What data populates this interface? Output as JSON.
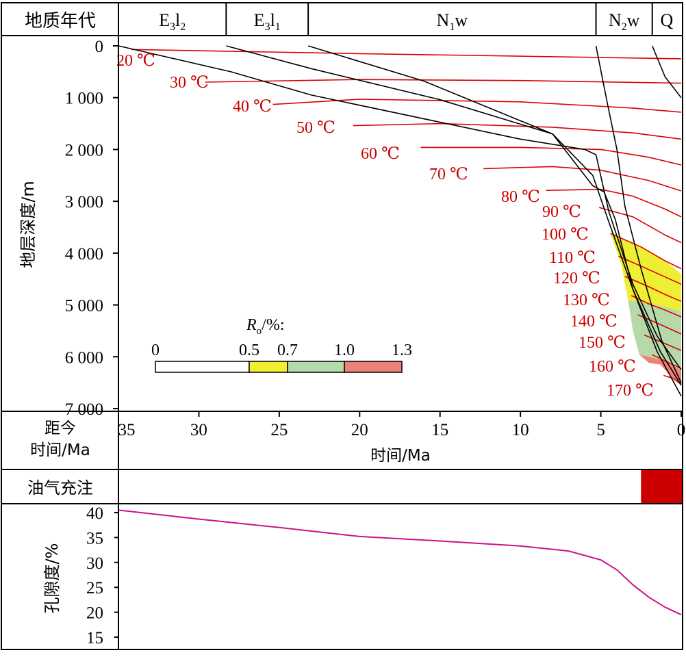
{
  "header": {
    "title": "地质年代",
    "formations": [
      {
        "base": "E",
        "sub": "3",
        "mid": "l",
        "sub2": "2",
        "start": 35,
        "end": 28.3
      },
      {
        "base": "E",
        "sub": "3",
        "mid": "l",
        "sub2": "1",
        "start": 28.3,
        "end": 23.2
      },
      {
        "base": "N",
        "sub": "1",
        "mid": "w",
        "sub2": "",
        "start": 23.2,
        "end": 5.3
      },
      {
        "base": "N",
        "sub": "2",
        "mid": "w",
        "sub2": "",
        "start": 5.3,
        "end": 1.8
      },
      {
        "base": "Q",
        "sub": "",
        "mid": "",
        "sub2": "",
        "start": 1.8,
        "end": 0
      }
    ]
  },
  "burial": {
    "ylabel": "地层深度/m",
    "y_ticks": [
      "0",
      "1 000",
      "2 000",
      "3 000",
      "4 000",
      "5 000",
      "6 000",
      "7 000"
    ],
    "y_tick_values": [
      0,
      1000,
      2000,
      3000,
      4000,
      5000,
      6000,
      7000
    ],
    "ylim": [
      0,
      7000
    ],
    "xlim": [
      35,
      0
    ]
  },
  "xaxis": {
    "left_label": "距今\n时间/Ma",
    "ticks": [
      "35",
      "30",
      "25",
      "20",
      "15",
      "10",
      "5",
      "0"
    ],
    "tick_values": [
      35,
      30,
      25,
      20,
      15,
      10,
      5,
      0
    ],
    "xlabel": "时间/Ma"
  },
  "legend": {
    "title_main": "R",
    "title_sub": "o",
    "title_rest": "/%:",
    "labels": [
      "0",
      "0.5",
      "0.7",
      "1.0",
      "1.3"
    ],
    "colors": [
      "#ffffff",
      "#eeee33",
      "#b5d9a8",
      "#ee8278"
    ]
  },
  "charge": {
    "label": "油气充注",
    "start_ma": 2.5,
    "end_ma": 0,
    "color": "#cc0000"
  },
  "porosity": {
    "ylabel": "孔隙度/%",
    "y_ticks": [
      "40",
      "35",
      "30",
      "25",
      "20",
      "15"
    ],
    "y_tick_values": [
      40,
      35,
      30,
      25,
      20,
      15
    ],
    "color": "#cc1188"
  },
  "chart_data": [
    {
      "type": "line",
      "name": "burial-history",
      "x_unit": "Ma",
      "y_unit": "m",
      "xlim": [
        35,
        0
      ],
      "ylim": [
        0,
        7000
      ],
      "burial_curves": [
        [
          [
            35,
            0
          ],
          [
            28,
            500
          ],
          [
            23,
            950
          ],
          [
            10,
            1800
          ],
          [
            6,
            2000
          ],
          [
            5.3,
            2100
          ],
          [
            4.5,
            3200
          ],
          [
            3,
            4600
          ],
          [
            1.5,
            5600
          ],
          [
            0,
            6250
          ]
        ],
        [
          [
            28.3,
            0
          ],
          [
            23,
            440
          ],
          [
            15,
            1040
          ],
          [
            8,
            1700
          ],
          [
            5.5,
            2500
          ],
          [
            4.5,
            3400
          ],
          [
            3,
            4700
          ],
          [
            1.3,
            5900
          ],
          [
            0,
            6550
          ]
        ],
        [
          [
            23.2,
            0
          ],
          [
            16,
            680
          ],
          [
            8,
            1700
          ],
          [
            5.5,
            2700
          ],
          [
            4.8,
            2820
          ],
          [
            4.1,
            3350
          ],
          [
            3,
            4700
          ],
          [
            1.5,
            5900
          ],
          [
            0,
            6760
          ]
        ],
        [
          [
            5.3,
            0
          ],
          [
            4.6,
            1100
          ],
          [
            4,
            2000
          ],
          [
            3.5,
            3100
          ],
          [
            2.5,
            4300
          ],
          [
            1.2,
            5700
          ],
          [
            0,
            6500
          ]
        ],
        [
          [
            1.8,
            0
          ],
          [
            1,
            600
          ],
          [
            0,
            1000
          ]
        ]
      ],
      "isotherms": [
        {
          "label": "20 ℃",
          "start_ma": 34.2,
          "points": [
            [
              34.2,
              70
            ],
            [
              20,
              150
            ],
            [
              10,
              200
            ],
            [
              0,
              250
            ]
          ]
        },
        {
          "label": "30 ℃",
          "start_ma": 29.6,
          "points": [
            [
              29.6,
              700
            ],
            [
              20,
              650
            ],
            [
              10,
              670
            ],
            [
              0,
              720
            ]
          ]
        },
        {
          "label": "40 ℃",
          "start_ma": 25.4,
          "points": [
            [
              25.4,
              1130
            ],
            [
              20,
              1030
            ],
            [
              10,
              1080
            ],
            [
              3,
              1200
            ],
            [
              0,
              1280
            ]
          ]
        },
        {
          "label": "50 ℃",
          "start_ma": 20.4,
          "points": [
            [
              20.4,
              1540
            ],
            [
              15,
              1500
            ],
            [
              8,
              1570
            ],
            [
              3,
              1680
            ],
            [
              0,
              1800
            ]
          ]
        },
        {
          "label": "60 ℃",
          "start_ma": 16.2,
          "points": [
            [
              16.2,
              1960
            ],
            [
              10,
              1960
            ],
            [
              5,
              2000
            ],
            [
              2,
              2150
            ],
            [
              0,
              2300
            ]
          ]
        },
        {
          "label": "70 ℃",
          "start_ma": 12.3,
          "points": [
            [
              12.3,
              2370
            ],
            [
              8,
              2330
            ],
            [
              5,
              2400
            ],
            [
              2,
              2600
            ],
            [
              0,
              2800
            ]
          ]
        },
        {
          "label": "80 ℃",
          "start_ma": 8.4,
          "points": [
            [
              8.4,
              2790
            ],
            [
              5,
              2770
            ],
            [
              3,
              2900
            ],
            [
              1,
              3150
            ],
            [
              0,
              3300
            ]
          ]
        },
        {
          "label": "90 ℃",
          "start_ma": 5.1,
          "points": [
            [
              5.1,
              3120
            ],
            [
              3,
              3300
            ],
            [
              1,
              3650
            ],
            [
              0,
              3800
            ]
          ]
        },
        {
          "label": "100 ℃",
          "start_ma": 4.4,
          "points": [
            [
              4.4,
              3620
            ],
            [
              2.5,
              3880
            ],
            [
              1,
              4150
            ],
            [
              0,
              4300
            ]
          ]
        },
        {
          "label": "110 ℃",
          "start_ma": 3.9,
          "points": [
            [
              3.9,
              4060
            ],
            [
              2.5,
              4250
            ],
            [
              1,
              4460
            ],
            [
              0,
              4600
            ]
          ]
        },
        {
          "label": "120 ℃",
          "start_ma": 3.5,
          "points": [
            [
              3.5,
              4450
            ],
            [
              2,
              4650
            ],
            [
              1,
              4800
            ],
            [
              0,
              4930
            ]
          ]
        },
        {
          "label": "130 ℃",
          "start_ma": 3.1,
          "points": [
            [
              3.1,
              4820
            ],
            [
              2,
              4980
            ],
            [
              1,
              5100
            ],
            [
              0,
              5230
            ]
          ]
        },
        {
          "label": "140 ℃",
          "start_ma": 2.7,
          "points": [
            [
              2.7,
              5190
            ],
            [
              1.5,
              5350
            ],
            [
              0,
              5560
            ]
          ]
        },
        {
          "label": "150 ℃",
          "start_ma": 2.3,
          "points": [
            [
              2.3,
              5580
            ],
            [
              1.2,
              5720
            ],
            [
              0,
              5880
            ]
          ]
        },
        {
          "label": "160 ℃",
          "start_ma": 1.8,
          "points": [
            [
              1.8,
              5960
            ],
            [
              1,
              6080
            ],
            [
              0,
              6230
            ]
          ]
        },
        {
          "label": "170 ℃",
          "start_ma": 1.1,
          "points": [
            [
              1.1,
              6360
            ],
            [
              0.5,
              6420
            ],
            [
              0,
              6520
            ]
          ]
        }
      ],
      "maturity_zones": [
        {
          "ro": "0.5-0.7",
          "color": "#eeee33",
          "polygon": [
            [
              4.4,
              3620
            ],
            [
              2.5,
              3880
            ],
            [
              1,
              4150
            ],
            [
              0,
              4400
            ],
            [
              0,
              5120
            ],
            [
              1,
              5040
            ],
            [
              2.5,
              4950
            ],
            [
              3.3,
              4920
            ],
            [
              3.7,
              4250
            ]
          ]
        },
        {
          "ro": "0.7-1.0",
          "color": "#b5d9a8",
          "polygon": [
            [
              3.3,
              4920
            ],
            [
              2.5,
              4950
            ],
            [
              1,
              5040
            ],
            [
              0,
              5120
            ],
            [
              0,
              6270
            ],
            [
              1,
              6080
            ],
            [
              2,
              6000
            ],
            [
              2.6,
              5960
            ],
            [
              3,
              5500
            ]
          ]
        },
        {
          "ro": "1.0-1.3",
          "color": "#ee8278",
          "polygon": [
            [
              2.6,
              5960
            ],
            [
              2,
              6000
            ],
            [
              1,
              6080
            ],
            [
              0,
              6270
            ],
            [
              0,
              6560
            ],
            [
              0.5,
              6430
            ],
            [
              1.3,
              6150
            ],
            [
              2,
              6120
            ]
          ]
        }
      ]
    },
    {
      "type": "line",
      "name": "porosity",
      "x_unit": "Ma",
      "y_unit": "%",
      "xlim": [
        35,
        0
      ],
      "ylim": [
        15,
        40
      ],
      "ylabel": "孔隙度/%",
      "x": [
        35,
        30,
        25,
        20,
        15,
        10,
        7,
        5,
        4,
        3,
        2,
        1,
        0
      ],
      "values": [
        40.5,
        38.7,
        37,
        35.2,
        34.3,
        33.3,
        32.3,
        30.5,
        28.5,
        25.5,
        23,
        21,
        19.5
      ]
    }
  ]
}
